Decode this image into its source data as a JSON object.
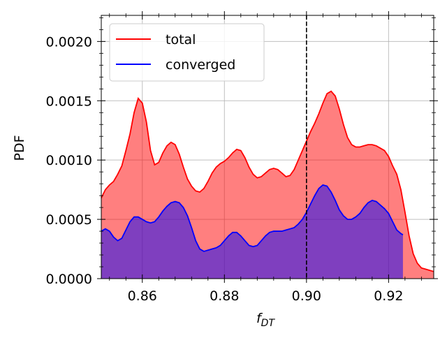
{
  "chart_data": {
    "type": "area",
    "xlabel_main": "f",
    "xlabel_sub": "DT",
    "ylabel": "PDF",
    "xlim": [
      0.85,
      0.931
    ],
    "ylim": [
      0,
      0.00222
    ],
    "xticks": [
      0.86,
      0.88,
      0.9,
      0.92
    ],
    "xtick_labels": [
      "0.86",
      "0.88",
      "0.90",
      "0.92"
    ],
    "yticks": [
      0,
      0.0005,
      0.001,
      0.0015,
      0.002
    ],
    "ytick_labels": [
      "0.0000",
      "0.0005",
      "0.0010",
      "0.0015",
      "0.0020"
    ],
    "grid": true,
    "legend_position": "top-left",
    "vline": {
      "x": 0.9,
      "style": "dashed",
      "color": "#000000"
    },
    "series": [
      {
        "name": "total",
        "line_color": "#ff0000",
        "fill_color": "#ff0000",
        "fill_opacity": 0.5,
        "x": [
          0.85,
          0.851,
          0.852,
          0.853,
          0.854,
          0.855,
          0.856,
          0.857,
          0.858,
          0.859,
          0.86,
          0.861,
          0.862,
          0.863,
          0.864,
          0.865,
          0.866,
          0.867,
          0.868,
          0.869,
          0.87,
          0.871,
          0.872,
          0.873,
          0.874,
          0.875,
          0.876,
          0.877,
          0.878,
          0.879,
          0.88,
          0.881,
          0.882,
          0.883,
          0.884,
          0.885,
          0.886,
          0.887,
          0.888,
          0.889,
          0.89,
          0.891,
          0.892,
          0.893,
          0.894,
          0.895,
          0.896,
          0.897,
          0.898,
          0.899,
          0.9,
          0.901,
          0.902,
          0.903,
          0.904,
          0.905,
          0.906,
          0.907,
          0.908,
          0.909,
          0.91,
          0.911,
          0.912,
          0.913,
          0.914,
          0.915,
          0.916,
          0.917,
          0.918,
          0.919,
          0.92,
          0.921,
          0.922,
          0.923,
          0.924,
          0.925,
          0.926,
          0.927,
          0.928,
          0.929,
          0.93,
          0.931
        ],
        "y": [
          0.00068,
          0.00075,
          0.00079,
          0.00082,
          0.00088,
          0.00095,
          0.00108,
          0.00122,
          0.0014,
          0.00152,
          0.00148,
          0.00132,
          0.00108,
          0.00096,
          0.00098,
          0.00106,
          0.00112,
          0.00115,
          0.00113,
          0.00105,
          0.00094,
          0.00084,
          0.00078,
          0.00074,
          0.00073,
          0.00076,
          0.00082,
          0.00089,
          0.00094,
          0.00097,
          0.00099,
          0.00102,
          0.00106,
          0.00109,
          0.00108,
          0.00102,
          0.00094,
          0.00088,
          0.00085,
          0.00086,
          0.00089,
          0.00092,
          0.00093,
          0.00092,
          0.00089,
          0.00086,
          0.00087,
          0.00092,
          0.001,
          0.00108,
          0.00116,
          0.00124,
          0.00131,
          0.00139,
          0.00148,
          0.00156,
          0.00158,
          0.00154,
          0.00143,
          0.0013,
          0.00119,
          0.00113,
          0.00111,
          0.00111,
          0.00112,
          0.00113,
          0.00113,
          0.00112,
          0.0011,
          0.00108,
          0.00103,
          0.00095,
          0.00088,
          0.00075,
          0.00056,
          0.00036,
          0.00021,
          0.00013,
          9e-05,
          8e-05,
          7e-05,
          6e-05
        ]
      },
      {
        "name": "converged",
        "line_color": "#0000ff",
        "fill_color": "#0000ff",
        "fill_opacity": 0.5,
        "x": [
          0.85,
          0.851,
          0.852,
          0.853,
          0.854,
          0.855,
          0.856,
          0.857,
          0.858,
          0.859,
          0.86,
          0.861,
          0.862,
          0.863,
          0.864,
          0.865,
          0.866,
          0.867,
          0.868,
          0.869,
          0.87,
          0.871,
          0.872,
          0.873,
          0.874,
          0.875,
          0.876,
          0.877,
          0.878,
          0.879,
          0.88,
          0.881,
          0.882,
          0.883,
          0.884,
          0.885,
          0.886,
          0.887,
          0.888,
          0.889,
          0.89,
          0.891,
          0.892,
          0.893,
          0.894,
          0.895,
          0.896,
          0.897,
          0.898,
          0.899,
          0.9,
          0.901,
          0.902,
          0.903,
          0.904,
          0.905,
          0.906,
          0.907,
          0.908,
          0.909,
          0.91,
          0.911,
          0.912,
          0.913,
          0.914,
          0.915,
          0.916,
          0.917,
          0.918,
          0.919,
          0.92,
          0.921,
          0.922,
          0.923,
          0.9235
        ],
        "y": [
          0.0004,
          0.00042,
          0.0004,
          0.00035,
          0.00032,
          0.00034,
          0.00041,
          0.00048,
          0.00052,
          0.00052,
          0.0005,
          0.00048,
          0.00047,
          0.00048,
          0.00052,
          0.00057,
          0.00061,
          0.00064,
          0.00065,
          0.00064,
          0.0006,
          0.00053,
          0.00043,
          0.00032,
          0.00025,
          0.00023,
          0.00024,
          0.00025,
          0.00026,
          0.00028,
          0.00032,
          0.00036,
          0.00039,
          0.00039,
          0.00036,
          0.00032,
          0.00028,
          0.00027,
          0.00028,
          0.00032,
          0.00036,
          0.00039,
          0.0004,
          0.0004,
          0.0004,
          0.00041,
          0.00042,
          0.00043,
          0.00046,
          0.0005,
          0.00056,
          0.00063,
          0.0007,
          0.00076,
          0.00079,
          0.00078,
          0.00073,
          0.00066,
          0.00058,
          0.00053,
          0.0005,
          0.0005,
          0.00052,
          0.00055,
          0.0006,
          0.00064,
          0.00066,
          0.00065,
          0.00062,
          0.00059,
          0.00055,
          0.00048,
          0.00041,
          0.00038,
          0.00037
        ]
      }
    ]
  }
}
